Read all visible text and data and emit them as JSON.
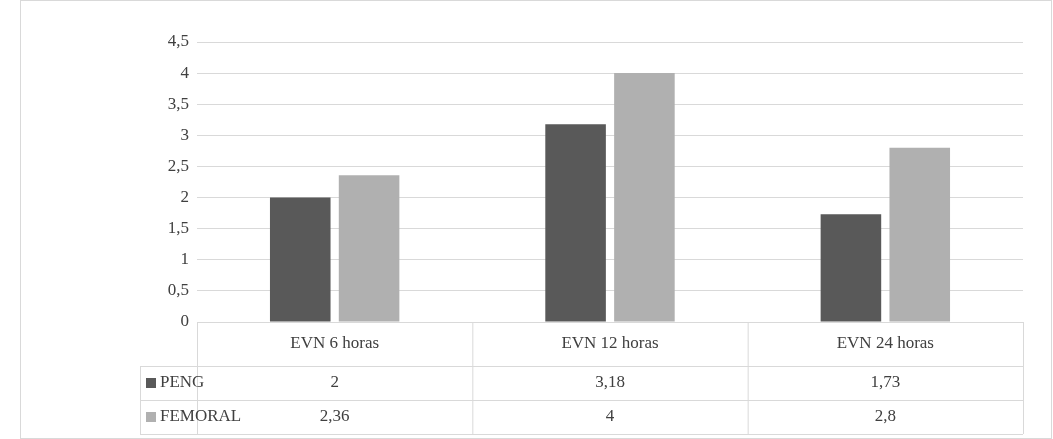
{
  "chart_data": {
    "type": "bar",
    "categories": [
      "EVN 6 horas",
      "EVN 12 horas",
      "EVN 24 horas"
    ],
    "series": [
      {
        "name": "PENG",
        "color": "#595959",
        "values": [
          2,
          3.18,
          1.73
        ],
        "value_labels": [
          "2",
          "3,18",
          "1,73"
        ]
      },
      {
        "name": "FEMORAL",
        "color": "#b0b0b0",
        "values": [
          2.36,
          4,
          2.8
        ],
        "value_labels": [
          "2,36",
          "4",
          "2,8"
        ]
      }
    ],
    "ylim": [
      0,
      4.5
    ],
    "yticks": [
      0,
      {
        "value": 0.5,
        "label": "0,5"
      },
      1,
      {
        "value": 1.5,
        "label": "1,5"
      },
      2,
      {
        "value": 2.5,
        "label": "2,5"
      },
      3,
      {
        "value": 3.5,
        "label": "3,5"
      },
      4,
      {
        "value": 4.5,
        "label": "4,5"
      }
    ],
    "grid": "y",
    "legend": "bottom left"
  }
}
